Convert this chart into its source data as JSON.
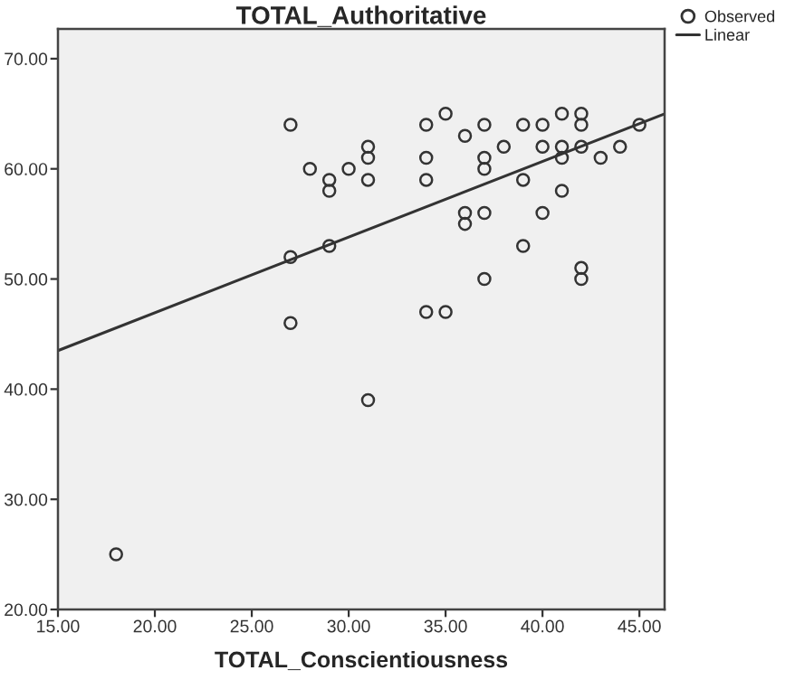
{
  "chart_data": {
    "type": "scatter",
    "title": "TOTAL_Authoritative",
    "xlabel": "TOTAL_Conscientiousness",
    "xlim": [
      15,
      46.3
    ],
    "ylim": [
      20,
      72.7
    ],
    "xticks": [
      {
        "value": 15,
        "label": "15.00"
      },
      {
        "value": 20,
        "label": "20.00"
      },
      {
        "value": 25,
        "label": "25.00"
      },
      {
        "value": 30,
        "label": "30.00"
      },
      {
        "value": 35,
        "label": "35.00"
      },
      {
        "value": 40,
        "label": "40.00"
      },
      {
        "value": 45,
        "label": "45.00"
      }
    ],
    "yticks": [
      {
        "value": 20,
        "label": "20.00"
      },
      {
        "value": 30,
        "label": "30.00"
      },
      {
        "value": 40,
        "label": "40.00"
      },
      {
        "value": 50,
        "label": "50.00"
      },
      {
        "value": 60,
        "label": "60.00"
      },
      {
        "value": 70,
        "label": "70.00"
      }
    ],
    "grid": false,
    "legend": "top right",
    "series": [
      {
        "name": "Observed",
        "marker": "circle",
        "color": "#333333",
        "x": [
          27,
          35,
          34,
          36,
          37,
          39,
          40,
          41,
          42,
          42,
          31,
          31,
          38,
          34,
          37,
          40,
          41,
          41,
          42,
          43,
          44,
          45,
          28,
          30,
          29,
          29,
          31,
          34,
          37,
          39,
          41,
          36,
          36,
          37,
          40,
          27,
          29,
          39,
          37,
          42,
          42,
          34,
          35,
          27,
          31,
          18
        ],
        "values": [
          64,
          65,
          64,
          63,
          64,
          64,
          64,
          65,
          65,
          64,
          62,
          61,
          62,
          61,
          61,
          62,
          62,
          61,
          62,
          61,
          62,
          64,
          60,
          60,
          59,
          58,
          59,
          59,
          60,
          59,
          58,
          56,
          55,
          56,
          56,
          52,
          53,
          53,
          50,
          51,
          50,
          47,
          47,
          46,
          39,
          25
        ]
      },
      {
        "name": "Linear",
        "type": "line",
        "marker": "none",
        "color": "#333333",
        "x": [
          15,
          46.3
        ],
        "values": [
          43.5,
          65.0
        ]
      }
    ]
  }
}
